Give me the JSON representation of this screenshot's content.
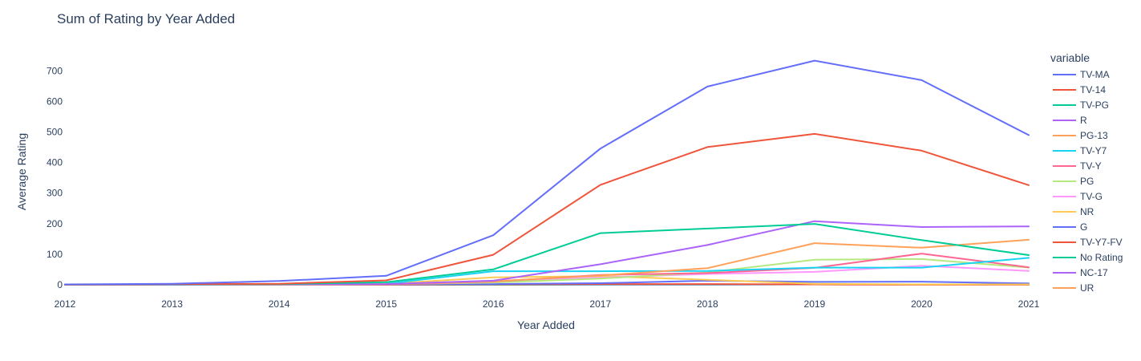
{
  "chart_data": {
    "type": "line",
    "title": "Sum of Rating by Year Added",
    "xlabel": "Year Added",
    "ylabel": "Average Rating",
    "legend_title": "variable",
    "legend_position": "right",
    "grid": false,
    "x": [
      2012,
      2013,
      2014,
      2015,
      2016,
      2017,
      2018,
      2019,
      2020,
      2021
    ],
    "xlim": [
      2012,
      2021
    ],
    "ylim": [
      -3,
      775
    ],
    "yticks": [
      0,
      100,
      200,
      300,
      400,
      500,
      600,
      700
    ],
    "xtick_labels": [
      "2012",
      "2013",
      "2014",
      "2015",
      "2016",
      "2017",
      "2018",
      "2019",
      "2020",
      "2021"
    ],
    "ytick_labels": [
      "0",
      "100",
      "200",
      "300",
      "400",
      "500",
      "600",
      "700"
    ],
    "series": [
      {
        "name": "TV-MA",
        "color": "#636efa",
        "values": [
          1,
          3,
          12,
          29,
          162,
          446,
          649,
          734,
          670,
          490
        ]
      },
      {
        "name": "TV-14",
        "color": "#EF553B",
        "values": [
          0,
          2,
          3,
          14,
          98,
          327,
          451,
          494,
          439,
          326
        ]
      },
      {
        "name": "TV-PG",
        "color": "#00cc96",
        "values": [
          0,
          1,
          2,
          8,
          50,
          169,
          184,
          199,
          146,
          97
        ]
      },
      {
        "name": "R",
        "color": "#ab63fa",
        "values": [
          0,
          0,
          1,
          2,
          13,
          67,
          130,
          208,
          189,
          191
        ]
      },
      {
        "name": "PG-13",
        "color": "#FFA15A",
        "values": [
          0,
          0,
          0,
          2,
          11,
          30,
          54,
          136,
          121,
          147
        ]
      },
      {
        "name": "TV-Y7",
        "color": "#19d3f3",
        "values": [
          0,
          0,
          0,
          3,
          44,
          44,
          45,
          56,
          56,
          88
        ]
      },
      {
        "name": "TV-Y",
        "color": "#FF6692",
        "values": [
          0,
          0,
          0,
          1,
          10,
          32,
          38,
          55,
          102,
          57
        ]
      },
      {
        "name": "PG",
        "color": "#B6E880",
        "values": [
          0,
          0,
          0,
          1,
          7,
          20,
          40,
          82,
          84,
          56
        ]
      },
      {
        "name": "TV-G",
        "color": "#FF97FF",
        "values": [
          0,
          0,
          1,
          2,
          13,
          23,
          35,
          42,
          62,
          45
        ]
      },
      {
        "name": "NR",
        "color": "#FECB52",
        "values": [
          0,
          0,
          1,
          3,
          24,
          28,
          16,
          3,
          1,
          1
        ]
      },
      {
        "name": "G",
        "color": "#636efa",
        "values": [
          0,
          0,
          0,
          1,
          2,
          5,
          13,
          9,
          10,
          4
        ]
      },
      {
        "name": "TV-Y7-FV",
        "color": "#EF553B",
        "values": [
          0,
          0,
          0,
          0,
          1,
          2,
          2,
          1,
          0,
          0
        ]
      },
      {
        "name": "No Rating",
        "color": "#00cc96",
        "values": [
          0,
          0,
          0,
          0,
          0,
          1,
          1,
          1,
          1,
          1
        ]
      },
      {
        "name": "NC-17",
        "color": "#ab63fa",
        "values": [
          0,
          0,
          0,
          0,
          0,
          0,
          0,
          1,
          0,
          0
        ]
      },
      {
        "name": "UR",
        "color": "#FFA15A",
        "values": [
          0,
          0,
          0,
          0,
          0,
          1,
          1,
          1,
          0,
          0
        ]
      }
    ]
  }
}
